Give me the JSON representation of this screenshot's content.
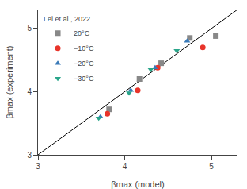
{
  "chart_data": {
    "type": "scatter",
    "xlabel": "βmax (model)",
    "ylabel": "βmax (experiment)",
    "xlim": [
      3.0,
      5.3
    ],
    "ylim": [
      3.0,
      5.3
    ],
    "xticks": [
      3,
      4,
      5
    ],
    "yticks": [
      3,
      4,
      5
    ],
    "grid": false,
    "legend": "upper left",
    "legend_title": "Lei et al., 2022",
    "series": [
      {
        "type": "line",
        "color": "#000000",
        "x": [
          3.0,
          5.3
        ],
        "values": [
          3.0,
          5.3
        ]
      },
      {
        "name": "20°C",
        "color": "#888888",
        "marker": "square",
        "x": [
          3.82,
          4.17,
          4.42,
          4.75,
          5.05
        ],
        "values": [
          3.72,
          4.2,
          4.45,
          4.85,
          4.88
        ]
      },
      {
        "name": "−10°C",
        "color": "#e8342a",
        "marker": "circle",
        "x": [
          3.8,
          4.15,
          4.38,
          4.9
        ],
        "values": [
          3.65,
          4.02,
          4.38,
          4.7
        ]
      },
      {
        "name": "−20°C",
        "color": "#3a7ab8",
        "marker": "triangle-up",
        "x": [
          3.72,
          4.07,
          4.35,
          4.72
        ],
        "values": [
          3.6,
          4.02,
          4.38,
          4.8
        ]
      },
      {
        "name": "−30°C",
        "color": "#2aa58a",
        "marker": "triangle-down",
        "x": [
          3.7,
          4.05,
          4.3,
          4.6
        ],
        "values": [
          3.58,
          3.98,
          4.35,
          4.65
        ]
      }
    ]
  }
}
